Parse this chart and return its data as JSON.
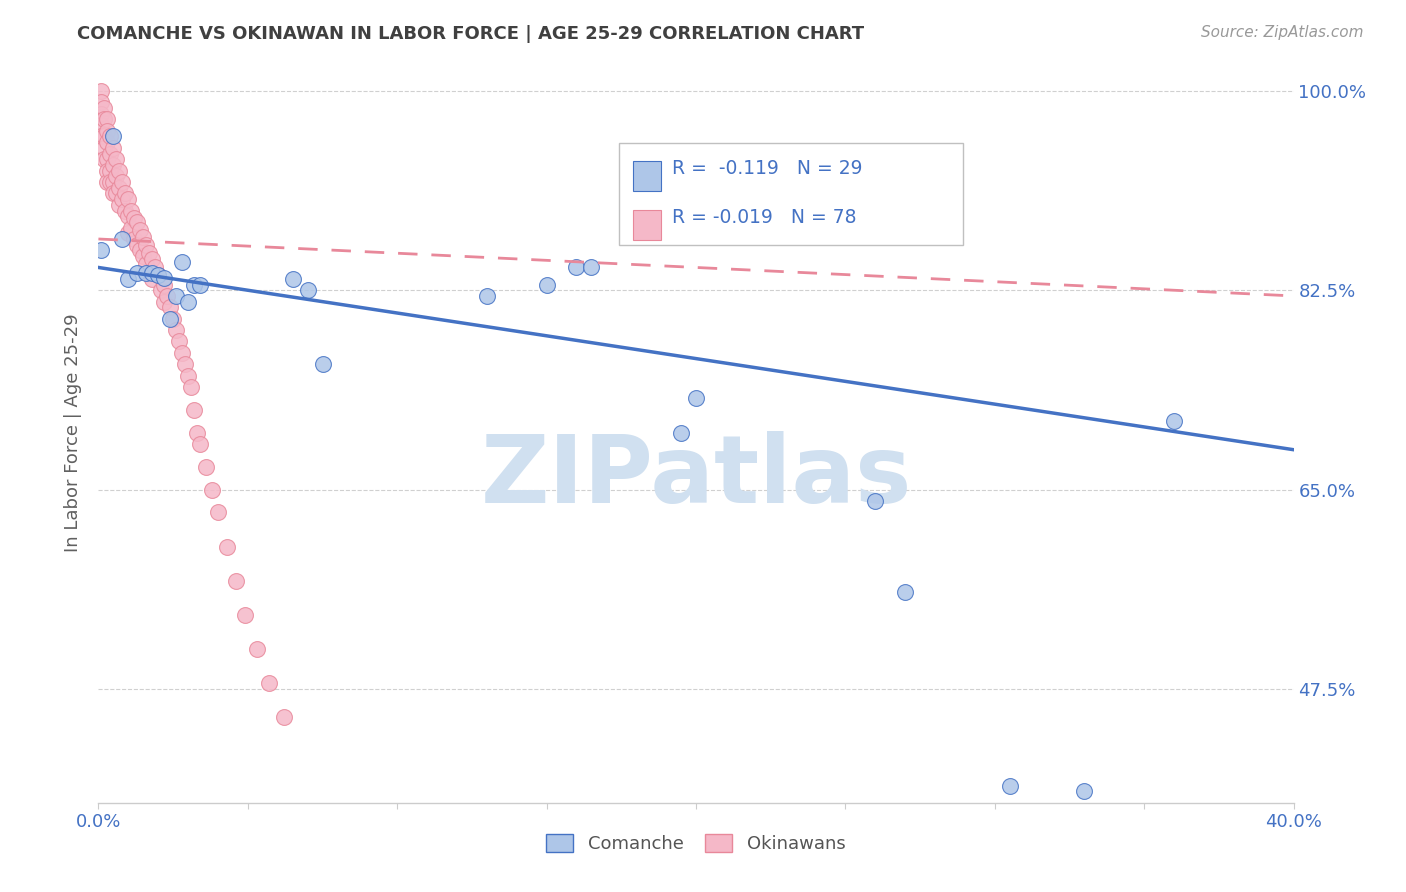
{
  "title": "COMANCHE VS OKINAWAN IN LABOR FORCE | AGE 25-29 CORRELATION CHART",
  "source": "Source: ZipAtlas.com",
  "ylabel": "In Labor Force | Age 25-29",
  "xlim": [
    0.0,
    0.4
  ],
  "ylim": [
    0.375,
    1.025
  ],
  "xticks": [
    0.0,
    0.05,
    0.1,
    0.15,
    0.2,
    0.25,
    0.3,
    0.35,
    0.4
  ],
  "xticklabels": [
    "0.0%",
    "",
    "",
    "",
    "",
    "",
    "",
    "",
    "40.0%"
  ],
  "ytick_positions": [
    1.0,
    0.825,
    0.65,
    0.475
  ],
  "ytick_labels": [
    "100.0%",
    "82.5%",
    "65.0%",
    "47.5%"
  ],
  "legend_r_comanche": "-0.119",
  "legend_n_comanche": "29",
  "legend_r_okinawan": "-0.019",
  "legend_n_okinawan": "78",
  "comanche_color": "#aec6e8",
  "okinawan_color": "#f5b8c8",
  "comanche_edge_color": "#4472c4",
  "okinawan_edge_color": "#e8889a",
  "comanche_line_color": "#4472c4",
  "okinawan_line_color": "#e8889a",
  "watermark": "ZIPatlas",
  "watermark_color": "#d0e0f0",
  "background_color": "#ffffff",
  "title_color": "#404040",
  "axis_label_color": "#606060",
  "tick_label_color": "#4472c4",
  "grid_color": "#d0d0d0",
  "comanche_x": [
    0.001,
    0.005,
    0.008,
    0.01,
    0.013,
    0.016,
    0.018,
    0.02,
    0.022,
    0.024,
    0.026,
    0.028,
    0.03,
    0.032,
    0.034,
    0.065,
    0.07,
    0.075,
    0.13,
    0.15,
    0.16,
    0.165,
    0.195,
    0.2,
    0.26,
    0.27,
    0.305,
    0.33,
    0.36
  ],
  "comanche_y": [
    0.86,
    0.96,
    0.87,
    0.835,
    0.84,
    0.84,
    0.84,
    0.838,
    0.836,
    0.8,
    0.82,
    0.85,
    0.815,
    0.83,
    0.83,
    0.835,
    0.825,
    0.76,
    0.82,
    0.83,
    0.845,
    0.845,
    0.7,
    0.73,
    0.64,
    0.56,
    0.39,
    0.385,
    0.71
  ],
  "okinawan_x": [
    0.001,
    0.001,
    0.001,
    0.001,
    0.001,
    0.002,
    0.002,
    0.002,
    0.002,
    0.002,
    0.003,
    0.003,
    0.003,
    0.003,
    0.003,
    0.003,
    0.004,
    0.004,
    0.004,
    0.004,
    0.005,
    0.005,
    0.005,
    0.005,
    0.006,
    0.006,
    0.006,
    0.007,
    0.007,
    0.007,
    0.008,
    0.008,
    0.009,
    0.009,
    0.01,
    0.01,
    0.01,
    0.011,
    0.011,
    0.012,
    0.012,
    0.013,
    0.013,
    0.014,
    0.014,
    0.015,
    0.015,
    0.016,
    0.016,
    0.017,
    0.018,
    0.018,
    0.019,
    0.02,
    0.021,
    0.022,
    0.022,
    0.023,
    0.024,
    0.025,
    0.026,
    0.027,
    0.028,
    0.029,
    0.03,
    0.031,
    0.032,
    0.033,
    0.034,
    0.036,
    0.038,
    0.04,
    0.043,
    0.046,
    0.049,
    0.053,
    0.057,
    0.062
  ],
  "okinawan_y": [
    1.0,
    0.99,
    0.98,
    0.97,
    0.96,
    0.985,
    0.975,
    0.96,
    0.95,
    0.94,
    0.975,
    0.965,
    0.955,
    0.94,
    0.93,
    0.92,
    0.96,
    0.945,
    0.93,
    0.92,
    0.95,
    0.935,
    0.92,
    0.91,
    0.94,
    0.925,
    0.91,
    0.93,
    0.915,
    0.9,
    0.92,
    0.905,
    0.91,
    0.895,
    0.905,
    0.89,
    0.875,
    0.895,
    0.88,
    0.888,
    0.87,
    0.885,
    0.865,
    0.878,
    0.86,
    0.872,
    0.855,
    0.865,
    0.848,
    0.858,
    0.852,
    0.835,
    0.845,
    0.838,
    0.825,
    0.83,
    0.815,
    0.82,
    0.81,
    0.8,
    0.79,
    0.78,
    0.77,
    0.76,
    0.75,
    0.74,
    0.72,
    0.7,
    0.69,
    0.67,
    0.65,
    0.63,
    0.6,
    0.57,
    0.54,
    0.51,
    0.48,
    0.45
  ],
  "trend_comanche_x0": 0.0,
  "trend_comanche_x1": 0.4,
  "trend_comanche_y0": 0.845,
  "trend_comanche_y1": 0.685,
  "trend_okinawan_x0": 0.0,
  "trend_okinawan_x1": 0.4,
  "trend_okinawan_y0": 0.87,
  "trend_okinawan_y1": 0.82
}
